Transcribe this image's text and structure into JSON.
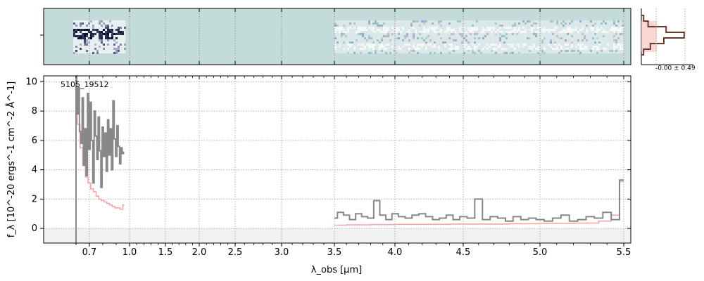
{
  "chart_data": [
    {
      "panel": "spectrum-2d",
      "type": "heatmap",
      "description_visible": "2D spectrum cutout",
      "segments": [
        {
          "x_range": [
            0.6,
            0.97
          ],
          "style": "dark-noisy"
        },
        {
          "x_range": [
            3.5,
            5.5
          ],
          "style": "light-two-traces"
        }
      ],
      "background_color": "#c3dbd9"
    },
    {
      "panel": "histogram",
      "type": "bar",
      "label": "-0.00 ± 0.49",
      "series": [
        {
          "bins": [
            -3,
            -2,
            -1,
            0,
            1,
            2,
            3
          ],
          "values": [
            0.05,
            0.15,
            0.55,
            0.95,
            0.5,
            0.2,
            0.05
          ]
        }
      ],
      "colors": {
        "line": "#6b3a2a",
        "fill": "#f6c8c0"
      }
    },
    {
      "panel": "spectrum-1d",
      "type": "line",
      "title": "",
      "annotation": "5105_19512",
      "xlabel": "λ_obs [μm]",
      "ylabel": "f_λ [10^-20 ergs^-1 cm^-2 Å^-1]",
      "ylim": [
        -1.0,
        10.4
      ],
      "ytick_labels": [
        "0",
        "2",
        "4",
        "6",
        "8",
        "10"
      ],
      "ytick_values": [
        0,
        2,
        4,
        6,
        8,
        10
      ],
      "xtick_labels": [
        "0.7",
        "1.0",
        "1.5",
        "2.0",
        "2.5",
        "3.0",
        "3.5",
        "4.0",
        "4.5",
        "5.0",
        "5.5"
      ],
      "xtick_values": [
        0.7,
        1.0,
        1.5,
        2.0,
        2.5,
        3.0,
        3.5,
        4.0,
        4.5,
        5.0,
        5.5
      ],
      "grid": true,
      "series": [
        {
          "style": "flux",
          "color": "#888888",
          "segments": [
            {
              "x": [
                0.6,
                0.61,
                0.62,
                0.63,
                0.64,
                0.65,
                0.66,
                0.67,
                0.68,
                0.69,
                0.7,
                0.71,
                0.72,
                0.73,
                0.74,
                0.75,
                0.76,
                0.77,
                0.78,
                0.79,
                0.8,
                0.81,
                0.82,
                0.83,
                0.84,
                0.85,
                0.86,
                0.87,
                0.88,
                0.89,
                0.9,
                0.91,
                0.92,
                0.93,
                0.94,
                0.95,
                0.96
              ],
              "y": [
                10.4,
                7.8,
                9.6,
                6.6,
                5.8,
                8.9,
                4.3,
                6.8,
                3.6,
                9.2,
                5.4,
                8.6,
                6.0,
                3.1,
                8.0,
                6.3,
                4.7,
                7.6,
                5.3,
                2.8,
                6.9,
                4.9,
                6.5,
                3.9,
                7.4,
                5.0,
                6.8,
                4.0,
                8.7,
                6.1,
                4.9,
                7.0,
                5.6,
                4.4,
                5.5,
                5.1,
                5.2
              ]
            },
            {
              "x": [
                3.5,
                3.55,
                3.6,
                3.65,
                3.7,
                3.75,
                3.8,
                3.85,
                3.9,
                3.95,
                4.0,
                4.05,
                4.1,
                4.15,
                4.2,
                4.25,
                4.3,
                4.35,
                4.4,
                4.45,
                4.5,
                4.55,
                4.6,
                4.65,
                4.7,
                4.75,
                4.8,
                4.85,
                4.9,
                4.95,
                5.0,
                5.05,
                5.1,
                5.15,
                5.2,
                5.25,
                5.3,
                5.35,
                5.4,
                5.45,
                5.5
              ],
              "y": [
                0.7,
                1.1,
                0.9,
                0.6,
                1.0,
                0.8,
                0.7,
                1.9,
                0.9,
                0.6,
                1.0,
                0.8,
                0.7,
                0.9,
                1.0,
                0.8,
                0.6,
                0.7,
                0.9,
                0.6,
                0.8,
                0.7,
                2.0,
                0.6,
                0.8,
                0.7,
                0.5,
                0.8,
                0.6,
                0.7,
                0.6,
                0.5,
                0.7,
                0.9,
                0.5,
                0.6,
                0.8,
                0.7,
                1.1,
                0.6,
                3.3
              ]
            }
          ]
        },
        {
          "style": "model",
          "color": "#f4a6a6",
          "segments": [
            {
              "x": [
                0.6,
                0.62,
                0.64,
                0.66,
                0.68,
                0.7,
                0.72,
                0.74,
                0.76,
                0.78,
                0.8,
                0.82,
                0.84,
                0.86,
                0.88,
                0.9,
                0.92,
                0.94,
                0.96
              ],
              "y": [
                8.4,
                7.1,
                5.5,
                4.3,
                3.5,
                3.1,
                2.7,
                2.5,
                2.2,
                2.0,
                1.9,
                1.8,
                1.7,
                1.6,
                1.5,
                1.4,
                1.4,
                1.3,
                1.6
              ]
            },
            {
              "x": [
                3.5,
                3.7,
                3.9,
                4.1,
                4.3,
                4.5,
                4.7,
                4.9,
                5.1,
                5.3,
                5.4,
                5.45,
                5.5
              ],
              "y": [
                0.22,
                0.24,
                0.26,
                0.28,
                0.28,
                0.3,
                0.3,
                0.32,
                0.34,
                0.36,
                0.5,
                0.9,
                3.2
              ]
            }
          ]
        }
      ]
    }
  ]
}
